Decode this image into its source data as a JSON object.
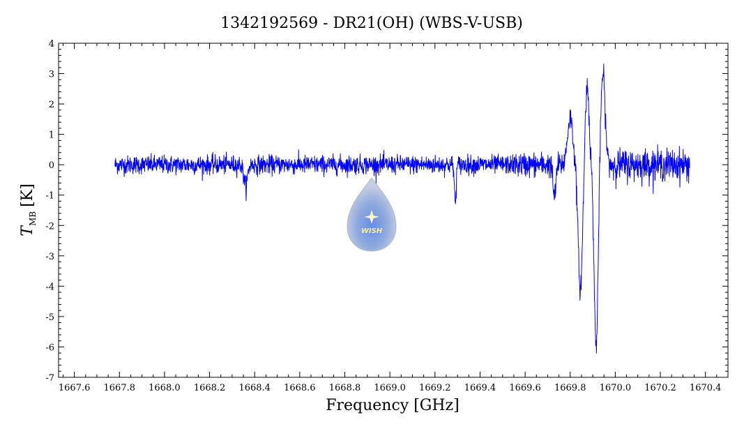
{
  "chart_data": {
    "type": "line",
    "title": "1342192569 - DR21(OH) (WBS-V-USB)",
    "xlabel": "Frequency [GHz]",
    "ylabel_main": "T",
    "ylabel_sub": "MB",
    "ylabel_unit": "[K]",
    "xlim": [
      1667.53,
      1670.5
    ],
    "ylim": [
      -7,
      4
    ],
    "x_ticks": [
      1667.6,
      1667.8,
      1668.0,
      1668.2,
      1668.4,
      1668.6,
      1668.8,
      1669.0,
      1669.2,
      1669.4,
      1669.6,
      1669.8,
      1670.0,
      1670.2,
      1670.4
    ],
    "x_tick_labels": [
      "1667.6",
      "1667.8",
      "1668.0",
      "1668.2",
      "1668.4",
      "1668.6",
      "1668.8",
      "1669.0",
      "1669.2",
      "1669.4",
      "1669.6",
      "1669.8",
      "1670.0",
      "1670.2",
      "1670.4"
    ],
    "y_ticks": [
      -7,
      -6,
      -5,
      -4,
      -3,
      -2,
      -1,
      0,
      1,
      2,
      3,
      4
    ],
    "y_tick_labels": [
      "-7",
      "-6",
      "-5",
      "-4",
      "-3",
      "-2",
      "-1",
      "0",
      "1",
      "2",
      "3",
      "4"
    ],
    "series": [
      {
        "color": "#0000ff",
        "x_range": [
          1667.78,
          1670.33
        ],
        "baseline": 0.0,
        "noise_rms": 0.15,
        "features": [
          {
            "x": 1668.36,
            "y": -0.7
          },
          {
            "x": 1669.29,
            "y": -1.25
          },
          {
            "x": 1669.73,
            "y": -1.1
          },
          {
            "x": 1669.8,
            "y": 1.55
          },
          {
            "x": 1669.845,
            "y": -4.1
          },
          {
            "x": 1669.875,
            "y": 2.6
          },
          {
            "x": 1669.915,
            "y": -6.0
          },
          {
            "x": 1669.945,
            "y": 3.0
          }
        ]
      }
    ],
    "logo_text": "WISH",
    "grid": false
  }
}
